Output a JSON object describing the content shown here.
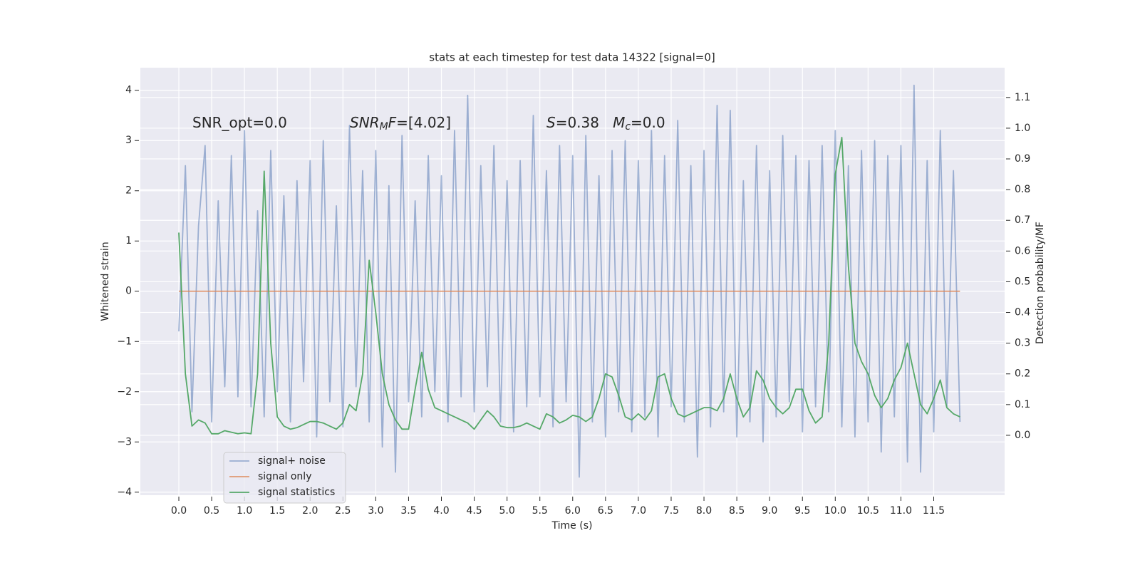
{
  "chart_data": {
    "type": "line",
    "title": "stats at each timestep for test data 14322 [signal=0]",
    "xlabel": "Time (s)",
    "ylabel": "Whitened strain",
    "y2label": "Detection probability/MF",
    "grid": true,
    "background": "#eaeaf2",
    "legend": "lower left",
    "annotations": [
      [
        {
          "text": "SNR_opt=0.0"
        }
      ],
      [
        {
          "text": "SNR",
          "style": "italic"
        },
        {
          "text": "M",
          "style": "sub"
        },
        {
          "text": "F",
          "style": "italic"
        },
        {
          "text": "=[4.02]"
        }
      ],
      [
        {
          "text": "S",
          "style": "italic"
        },
        {
          "text": "=0.38   "
        },
        {
          "text": "M",
          "style": "italic"
        },
        {
          "text": "c",
          "style": "sub"
        },
        {
          "text": "=0.0"
        }
      ]
    ],
    "xlim": [
      -0.586,
      12.58
    ],
    "xticks": [
      {
        "value": 0,
        "label": "0.0"
      },
      0.5,
      {
        "value": 1,
        "label": "1.0"
      },
      1.5,
      {
        "value": 2,
        "label": "2.0"
      },
      2.5,
      {
        "value": 3,
        "label": "3.0"
      },
      3.5,
      {
        "value": 4,
        "label": "4.0"
      },
      4.5,
      {
        "value": 5,
        "label": "5.0"
      },
      5.5,
      {
        "value": 6,
        "label": "6.0"
      },
      6.5,
      {
        "value": 7,
        "label": "7.0"
      },
      7.5,
      {
        "value": 8,
        "label": "8.0"
      },
      8.5,
      {
        "value": 9,
        "label": "9.0"
      },
      9.5,
      {
        "value": 10,
        "label": "10.0"
      },
      10.5,
      {
        "value": 11,
        "label": "11.0"
      },
      11.5
    ],
    "ylim": [
      -4.06,
      4.45
    ],
    "yticks": [
      {
        "value": -4,
        "label": "−4"
      },
      {
        "value": -3,
        "label": "−3"
      },
      {
        "value": -2,
        "label": "−2"
      },
      {
        "value": -1,
        "label": "−1"
      },
      0,
      1,
      2,
      3,
      4
    ],
    "y2lim": [
      -0.195,
      1.197
    ],
    "y2ticks": [
      {
        "value": 0,
        "label": "0.0"
      },
      0.1,
      0.2,
      0.3,
      0.4,
      0.5,
      0.6,
      0.7,
      0.8,
      0.9,
      {
        "value": 1,
        "label": "1.0"
      },
      1.1
    ],
    "x": [
      0,
      0.1,
      0.2,
      0.3,
      0.4,
      0.5,
      0.6,
      0.7,
      0.8,
      0.9,
      1,
      1.1,
      1.2,
      1.3,
      1.4,
      1.5,
      1.6,
      1.7,
      1.8,
      1.9,
      2,
      2.1,
      2.2,
      2.3,
      2.4,
      2.5,
      2.6,
      2.7,
      2.8,
      2.9,
      3,
      3.1,
      3.2,
      3.3,
      3.4,
      3.5,
      3.6,
      3.7,
      3.8,
      3.9,
      4,
      4.1,
      4.2,
      4.3,
      4.4,
      4.5,
      4.6,
      4.7,
      4.8,
      4.9,
      5,
      5.1,
      5.2,
      5.3,
      5.4,
      5.5,
      5.6,
      5.7,
      5.8,
      5.9,
      6,
      6.1,
      6.2,
      6.3,
      6.4,
      6.5,
      6.6,
      6.7,
      6.8,
      6.9,
      7,
      7.1,
      7.2,
      7.3,
      7.4,
      7.5,
      7.6,
      7.7,
      7.8,
      7.9,
      8,
      8.1,
      8.2,
      8.3,
      8.4,
      8.5,
      8.6,
      8.7,
      8.8,
      8.9,
      9,
      9.1,
      9.2,
      9.3,
      9.4,
      9.5,
      9.6,
      9.7,
      9.8,
      9.9,
      10,
      10.1,
      10.2,
      10.3,
      10.4,
      10.5,
      10.6,
      10.7,
      10.8,
      10.9,
      11,
      11.1,
      11.2,
      11.3,
      11.4,
      11.5,
      11.6,
      11.7,
      11.8,
      11.9
    ],
    "series": [
      {
        "name": "signal+ noise",
        "color": "#4c72b0",
        "opacity": 0.5,
        "values": [
          -0.8,
          2.5,
          -2.4,
          1.3,
          2.9,
          -2.6,
          1.8,
          -1.9,
          2.7,
          -2.1,
          3.2,
          -2.3,
          1.6,
          -2.5,
          2.8,
          -2.0,
          1.9,
          -2.6,
          2.2,
          -1.8,
          2.6,
          -2.9,
          3.0,
          -2.2,
          1.7,
          -2.7,
          3.3,
          -1.9,
          2.4,
          -2.6,
          2.8,
          -3.1,
          2.1,
          -3.6,
          3.1,
          -2.2,
          1.8,
          -2.5,
          2.7,
          -2.0,
          2.3,
          -2.6,
          3.2,
          -2.1,
          3.9,
          -2.4,
          2.5,
          -1.9,
          2.9,
          -2.6,
          2.2,
          -2.8,
          2.6,
          -2.3,
          3.5,
          -2.1,
          2.4,
          -2.7,
          2.9,
          -2.2,
          2.7,
          -3.7,
          3.1,
          -2.6,
          2.3,
          -2.9,
          2.8,
          -2.4,
          3.0,
          -2.8,
          2.6,
          -2.5,
          3.2,
          -2.9,
          2.7,
          -2.3,
          3.4,
          -2.6,
          2.5,
          -3.3,
          2.8,
          -2.7,
          3.7,
          -2.4,
          3.6,
          -2.9,
          2.2,
          -2.6,
          2.9,
          -3.0,
          2.4,
          -2.5,
          3.1,
          -2.2,
          2.7,
          -2.8,
          2.6,
          -2.3,
          2.9,
          -2.4,
          3.2,
          -2.7,
          2.5,
          -2.9,
          2.8,
          -2.6,
          3.0,
          -3.2,
          2.7,
          -2.5,
          2.9,
          -3.4,
          4.1,
          -3.6,
          2.6,
          -2.8,
          3.2,
          -2.3,
          2.4,
          -2.6
        ]
      },
      {
        "name": "signal only",
        "color": "#dd8452",
        "opacity": 0.8,
        "values": [
          0,
          0,
          0,
          0,
          0,
          0,
          0,
          0,
          0,
          0,
          0,
          0,
          0,
          0,
          0,
          0,
          0,
          0,
          0,
          0,
          0,
          0,
          0,
          0,
          0,
          0,
          0,
          0,
          0,
          0,
          0,
          0,
          0,
          0,
          0,
          0,
          0,
          0,
          0,
          0,
          0,
          0,
          0,
          0,
          0,
          0,
          0,
          0,
          0,
          0,
          0,
          0,
          0,
          0,
          0,
          0,
          0,
          0,
          0,
          0,
          0,
          0,
          0,
          0,
          0,
          0,
          0,
          0,
          0,
          0,
          0,
          0,
          0,
          0,
          0,
          0,
          0,
          0,
          0,
          0,
          0,
          0,
          0,
          0,
          0,
          0,
          0,
          0,
          0,
          0,
          0,
          0,
          0,
          0,
          0,
          0,
          0,
          0,
          0,
          0,
          0,
          0,
          0,
          0,
          0,
          0,
          0,
          0,
          0,
          0,
          0,
          0,
          0,
          0,
          0,
          0,
          0,
          0,
          0,
          0
        ]
      },
      {
        "name": "signal statistics",
        "color": "#55a868",
        "opacity": 1,
        "axis": "y2",
        "values": [
          0.66,
          0.2,
          0.03,
          0.05,
          0.04,
          0.005,
          0.005,
          0.015,
          0.01,
          0.005,
          0.008,
          0.005,
          0.2,
          0.86,
          0.3,
          0.06,
          0.03,
          0.02,
          0.025,
          0.035,
          0.045,
          0.045,
          0.04,
          0.03,
          0.02,
          0.04,
          0.1,
          0.08,
          0.2,
          0.57,
          0.4,
          0.2,
          0.1,
          0.05,
          0.02,
          0.02,
          0.15,
          0.27,
          0.15,
          0.09,
          0.08,
          0.07,
          0.06,
          0.05,
          0.04,
          0.02,
          0.05,
          0.08,
          0.06,
          0.03,
          0.025,
          0.025,
          0.03,
          0.04,
          0.03,
          0.02,
          0.07,
          0.06,
          0.04,
          0.05,
          0.065,
          0.06,
          0.045,
          0.06,
          0.12,
          0.2,
          0.19,
          0.13,
          0.06,
          0.05,
          0.07,
          0.05,
          0.08,
          0.19,
          0.2,
          0.12,
          0.07,
          0.06,
          0.07,
          0.08,
          0.09,
          0.09,
          0.08,
          0.12,
          0.2,
          0.12,
          0.06,
          0.09,
          0.21,
          0.18,
          0.12,
          0.09,
          0.07,
          0.09,
          0.15,
          0.15,
          0.08,
          0.04,
          0.06,
          0.3,
          0.85,
          0.97,
          0.55,
          0.3,
          0.24,
          0.2,
          0.13,
          0.09,
          0.12,
          0.18,
          0.22,
          0.3,
          0.2,
          0.1,
          0.07,
          0.12,
          0.18,
          0.09,
          0.07,
          0.06
        ]
      }
    ]
  }
}
